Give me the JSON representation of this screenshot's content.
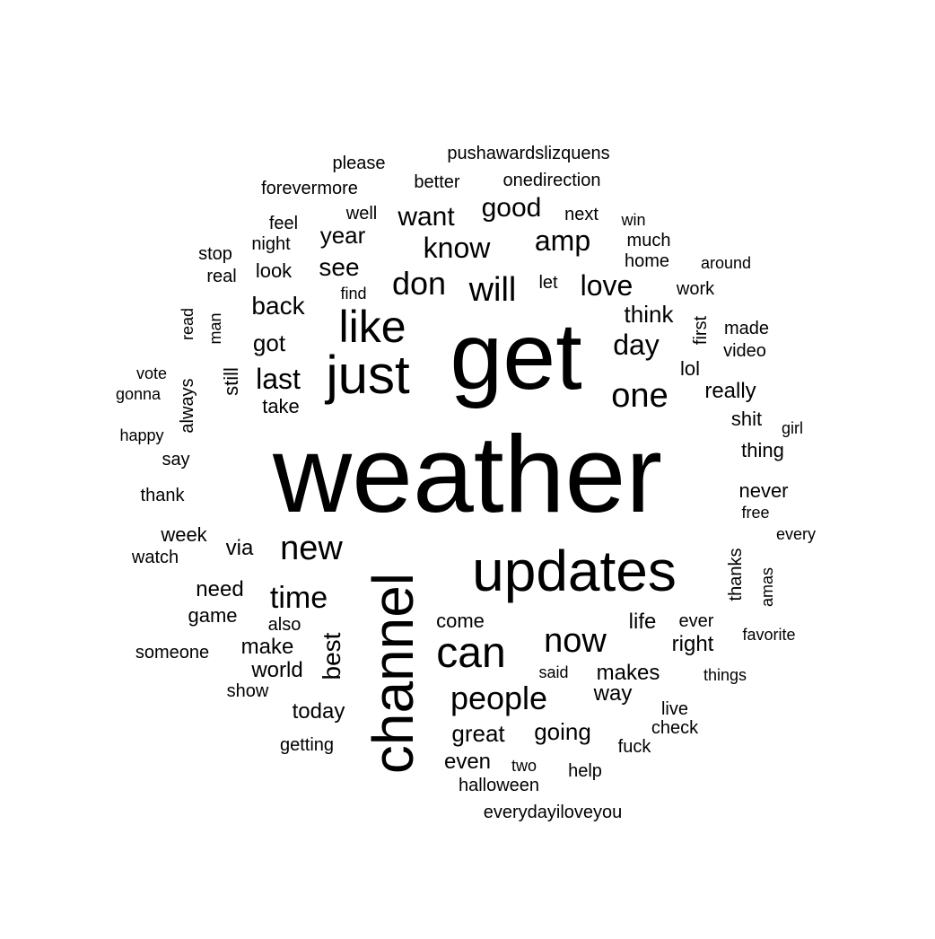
{
  "text_color": "#000000",
  "background": "#ffffff",
  "words": [
    {
      "text": "weather"
    },
    {
      "text": "get"
    },
    {
      "text": "updates"
    },
    {
      "text": "channel",
      "rotated": true
    },
    {
      "text": "just"
    },
    {
      "text": "like"
    },
    {
      "text": "can"
    },
    {
      "text": "one"
    },
    {
      "text": "new"
    },
    {
      "text": "now"
    },
    {
      "text": "people"
    },
    {
      "text": "time"
    },
    {
      "text": "will"
    },
    {
      "text": "don"
    },
    {
      "text": "know"
    },
    {
      "text": "amp"
    },
    {
      "text": "love"
    },
    {
      "text": "day"
    },
    {
      "text": "good"
    },
    {
      "text": "want"
    },
    {
      "text": "last"
    },
    {
      "text": "back"
    },
    {
      "text": "best",
      "rotated": true
    },
    {
      "text": "see"
    },
    {
      "text": "year"
    },
    {
      "text": "think"
    },
    {
      "text": "got"
    },
    {
      "text": "great"
    },
    {
      "text": "going"
    },
    {
      "text": "makes"
    },
    {
      "text": "make"
    },
    {
      "text": "world"
    },
    {
      "text": "need"
    },
    {
      "text": "today"
    },
    {
      "text": "really"
    },
    {
      "text": "right"
    },
    {
      "text": "way"
    },
    {
      "text": "life"
    },
    {
      "text": "even"
    },
    {
      "text": "via"
    },
    {
      "text": "game"
    },
    {
      "text": "take"
    },
    {
      "text": "still",
      "rotated": true
    },
    {
      "text": "look"
    },
    {
      "text": "always",
      "rotated": true
    },
    {
      "text": "first",
      "rotated": true
    },
    {
      "text": "thanks",
      "rotated": true
    },
    {
      "text": "well"
    },
    {
      "text": "feel"
    },
    {
      "text": "never"
    },
    {
      "text": "thing"
    },
    {
      "text": "week"
    },
    {
      "text": "come"
    },
    {
      "text": "shit"
    },
    {
      "text": "lol"
    },
    {
      "text": "ever"
    },
    {
      "text": "video"
    },
    {
      "text": "made"
    },
    {
      "text": "work"
    },
    {
      "text": "much"
    },
    {
      "text": "home"
    },
    {
      "text": "next"
    },
    {
      "text": "better"
    },
    {
      "text": "onedirection"
    },
    {
      "text": "pushawardslizquens"
    },
    {
      "text": "please"
    },
    {
      "text": "forevermore"
    },
    {
      "text": "night"
    },
    {
      "text": "stop"
    },
    {
      "text": "real"
    },
    {
      "text": "find"
    },
    {
      "text": "let"
    },
    {
      "text": "read",
      "rotated": true
    },
    {
      "text": "man",
      "rotated": true
    },
    {
      "text": "vote"
    },
    {
      "text": "gonna"
    },
    {
      "text": "happy"
    },
    {
      "text": "say"
    },
    {
      "text": "thank"
    },
    {
      "text": "watch"
    },
    {
      "text": "someone"
    },
    {
      "text": "also"
    },
    {
      "text": "show"
    },
    {
      "text": "getting"
    },
    {
      "text": "said"
    },
    {
      "text": "two"
    },
    {
      "text": "halloween"
    },
    {
      "text": "help"
    },
    {
      "text": "everydayiloveyou"
    },
    {
      "text": "live"
    },
    {
      "text": "check"
    },
    {
      "text": "fuck"
    },
    {
      "text": "things"
    },
    {
      "text": "favorite"
    },
    {
      "text": "amas",
      "rotated": true
    },
    {
      "text": "every"
    },
    {
      "text": "free"
    },
    {
      "text": "girl"
    },
    {
      "text": "around"
    },
    {
      "text": "win"
    }
  ]
}
